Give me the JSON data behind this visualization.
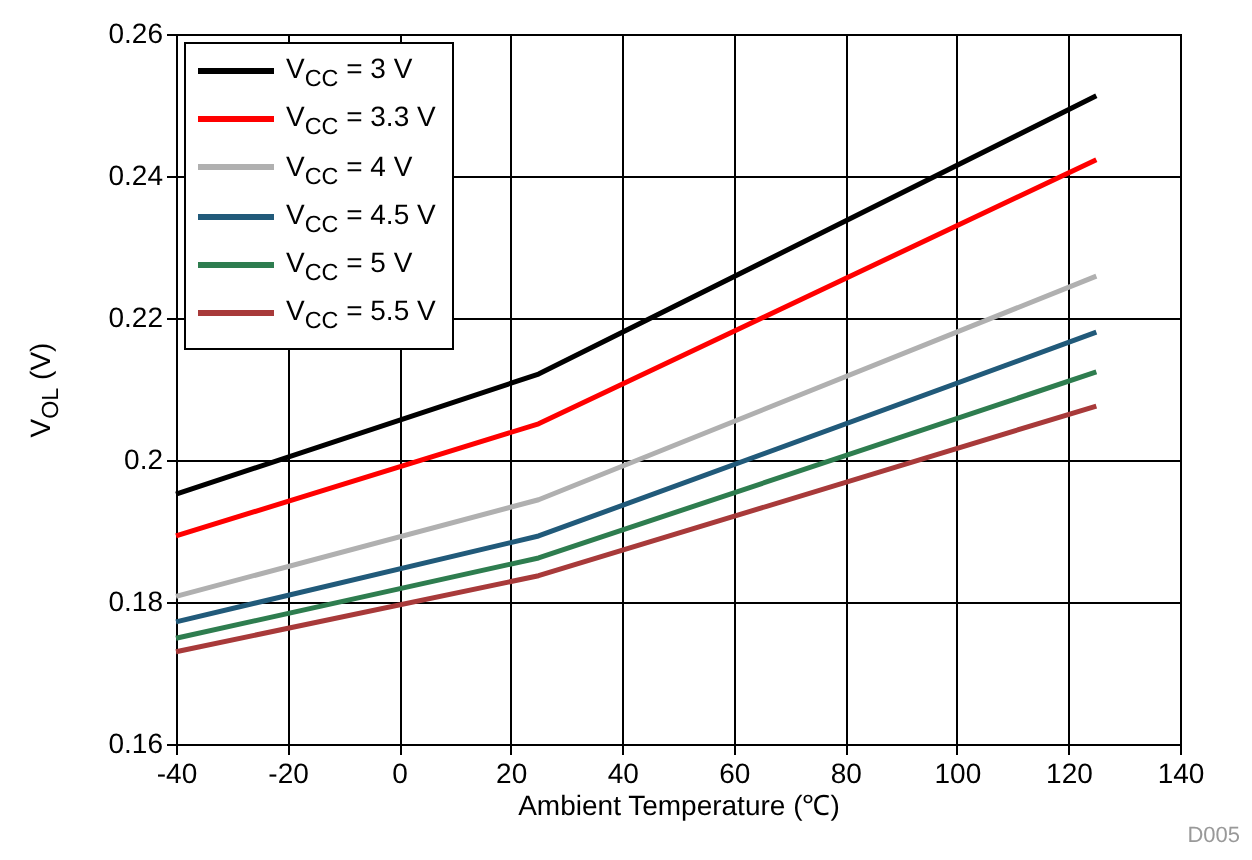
{
  "chart_data": {
    "type": "line",
    "xlabel": "Ambient Temperature (℃)",
    "ylabel": "V$_{OL}$ (V)",
    "x": [
      -40,
      25,
      125
    ],
    "series": [
      {
        "name": "V$_{CC}$ = 3 V",
        "color": "#000000",
        "values": [
          0.1952,
          0.2121,
          0.2513
        ]
      },
      {
        "name": "V$_{CC}$ = 3.3 V",
        "color": "#ff0000",
        "values": [
          0.1893,
          0.2051,
          0.2423
        ]
      },
      {
        "name": "V$_{CC}$ = 4 V",
        "color": "#b0b0b0",
        "values": [
          0.1808,
          0.1944,
          0.2259
        ]
      },
      {
        "name": "V$_{CC}$ = 4.5 V",
        "color": "#215a7a",
        "values": [
          0.1772,
          0.1893,
          0.218
        ]
      },
      {
        "name": "V$_{CC}$ = 5 V",
        "color": "#2e7d4f",
        "values": [
          0.1749,
          0.1862,
          0.2124
        ]
      },
      {
        "name": "V$_{CC}$ = 5.5 V",
        "color": "#a83a3a",
        "values": [
          0.173,
          0.1837,
          0.2076
        ]
      }
    ],
    "xlim": [
      -40,
      140
    ],
    "xticks": [
      -40,
      -20,
      0,
      20,
      40,
      60,
      80,
      100,
      120,
      140
    ],
    "ylim": [
      0.16,
      0.26
    ],
    "yticks": [
      0.16,
      0.18,
      0.2,
      0.22,
      0.24,
      0.26
    ],
    "grid": true,
    "legend": "top left",
    "marker": "none",
    "line_style": "solid",
    "annotations": [
      "D005"
    ]
  }
}
